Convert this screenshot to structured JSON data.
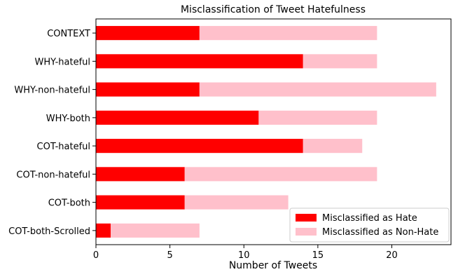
{
  "chart_data": {
    "type": "bar",
    "orientation": "horizontal",
    "stacked": true,
    "title": "Misclassification of Tweet Hatefulness",
    "xlabel": "Number of Tweets",
    "ylabel": "",
    "xlim": [
      0,
      24
    ],
    "xticks": [
      0,
      5,
      10,
      15,
      20
    ],
    "categories": [
      "CONTEXT",
      "WHY-hateful",
      "WHY-non-hateful",
      "WHY-both",
      "COT-hateful",
      "COT-non-hateful",
      "COT-both",
      "COT-both-Scrolled"
    ],
    "series": [
      {
        "name": "Misclassified as Hate",
        "color": "#ff0000",
        "values": [
          7,
          14,
          7,
          11,
          14,
          6,
          6,
          1
        ]
      },
      {
        "name": "Misclassified as Non-Hate",
        "color": "#ffc0cb",
        "values": [
          12,
          5,
          16,
          8,
          4,
          13,
          7,
          6
        ]
      }
    ],
    "legend_position": "lower-right",
    "grid": false
  }
}
